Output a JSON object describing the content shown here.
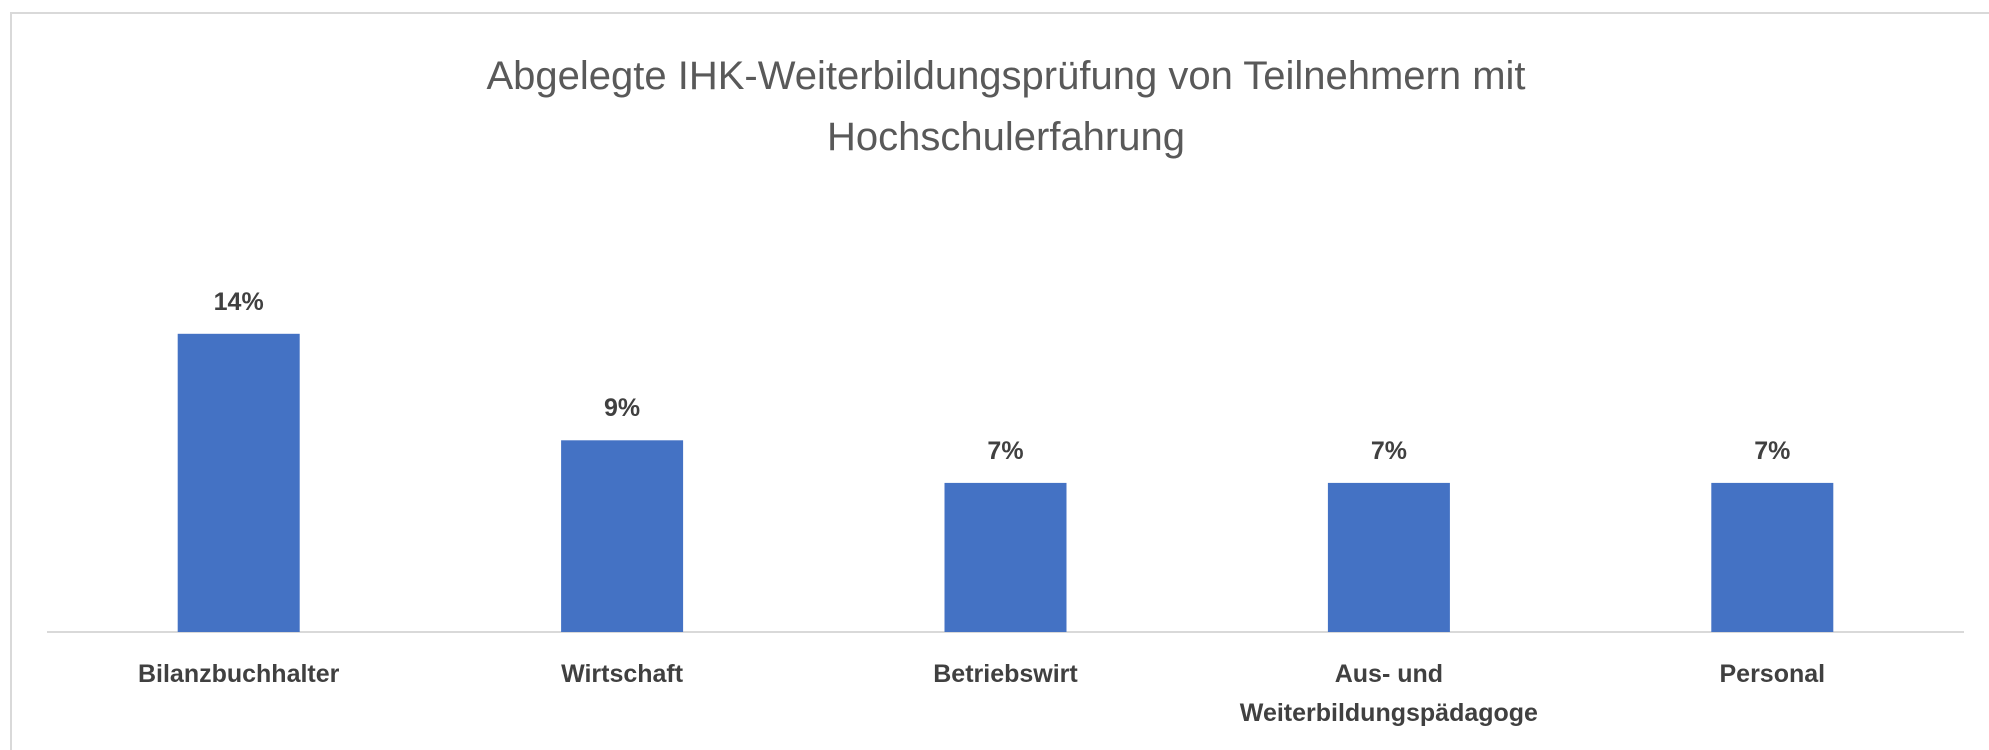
{
  "chart_data": {
    "type": "bar",
    "title": "Abgelegte IHK-Weiterbildungsprüfung von Teilnehmern mit Hochschulerfahrung",
    "categories": [
      "Bilanzbuchhalter",
      "Wirtschaft",
      "Betriebswirt",
      "Aus- und Weiterbildungspädagoge",
      "Personal"
    ],
    "values": [
      14,
      9,
      7,
      7,
      7
    ],
    "value_labels": [
      "14%",
      "9%",
      "7%",
      "7%",
      "7%"
    ],
    "color": "#4472c4"
  }
}
